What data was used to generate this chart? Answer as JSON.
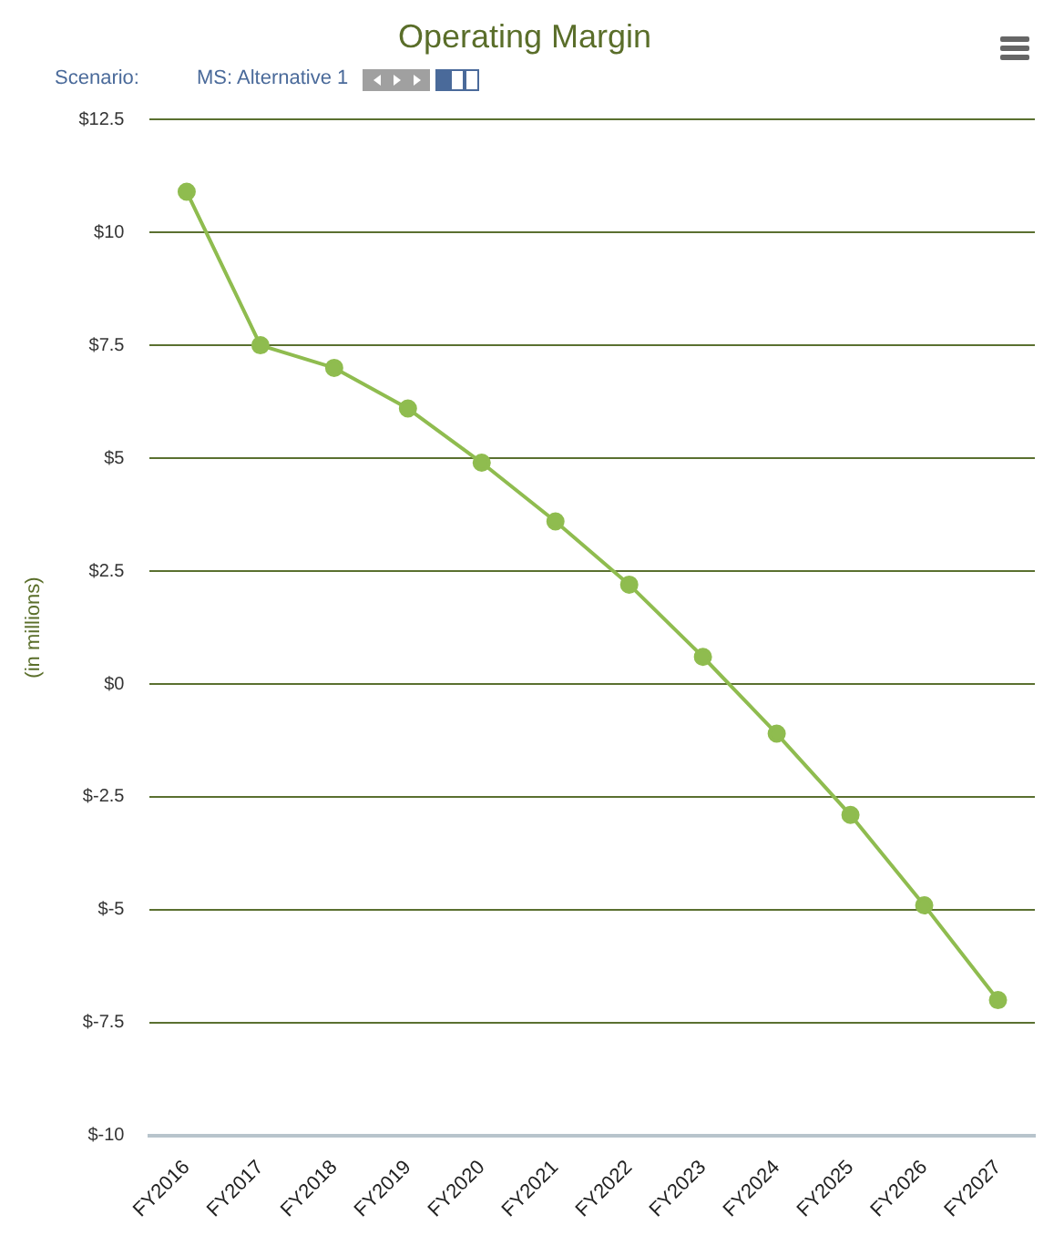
{
  "chart_data": {
    "type": "line",
    "title": "Operating Margin",
    "ylabel": "(in millions)",
    "annotations": [
      "Scenario:",
      "MS: Alternative 1"
    ],
    "categories": [
      "FY2016",
      "FY2017",
      "FY2018",
      "FY2019",
      "FY2020",
      "FY2021",
      "FY2022",
      "FY2023",
      "FY2024",
      "FY2025",
      "FY2026",
      "FY2027"
    ],
    "series": [
      {
        "color": "#8fbc4f",
        "values": [
          10.9,
          7.5,
          7.0,
          6.1,
          4.9,
          3.6,
          2.2,
          0.6,
          -1.1,
          -2.9,
          -4.9,
          -7.0
        ]
      }
    ],
    "ylim": [
      -10,
      12.5
    ],
    "yticks": [
      {
        "value": -10,
        "label": "$-10"
      },
      {
        "value": -7.5,
        "label": "$-7.5"
      },
      {
        "value": -5,
        "label": "$-5"
      },
      {
        "value": -2.5,
        "label": "$-2.5"
      },
      {
        "value": 0,
        "label": "$0"
      },
      {
        "value": 2.5,
        "label": "$2.5"
      },
      {
        "value": 5,
        "label": "$5"
      },
      {
        "value": 7.5,
        "label": "$7.5"
      },
      {
        "value": 10,
        "label": "$10"
      },
      {
        "value": 12.5,
        "label": "$12.5"
      }
    ],
    "grid": "y",
    "marker": "circle",
    "line_style": "solid",
    "legend": false
  }
}
